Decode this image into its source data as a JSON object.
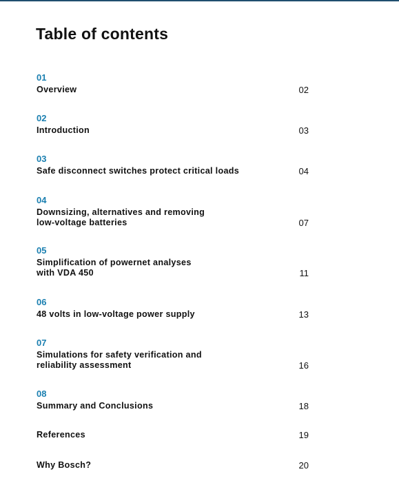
{
  "title": "Table of contents",
  "entries": [
    {
      "number": "01",
      "title_lines": [
        "Overview"
      ],
      "page": "02"
    },
    {
      "number": "02",
      "title_lines": [
        "Introduction"
      ],
      "page": "03"
    },
    {
      "number": "03",
      "title_lines": [
        "Safe disconnect switches protect critical loads"
      ],
      "page": "04"
    },
    {
      "number": "04",
      "title_lines": [
        "Downsizing, alternatives and removing",
        "low-voltage batteries"
      ],
      "page": "07"
    },
    {
      "number": "05",
      "title_lines": [
        "Simplification of powernet analyses",
        "with VDA 450"
      ],
      "page": "11"
    },
    {
      "number": "06",
      "title_lines": [
        "48 volts in low-voltage power supply"
      ],
      "page": "13"
    },
    {
      "number": "07",
      "title_lines": [
        "Simulations for safety verification and",
        "reliability assessment"
      ],
      "page": "16"
    },
    {
      "number": "08",
      "title_lines": [
        "Summary and Conclusions"
      ],
      "page": "18"
    },
    {
      "title_lines": [
        "References"
      ],
      "page": "19"
    },
    {
      "title_lines": [
        "Why Bosch?"
      ],
      "page": "20"
    }
  ]
}
